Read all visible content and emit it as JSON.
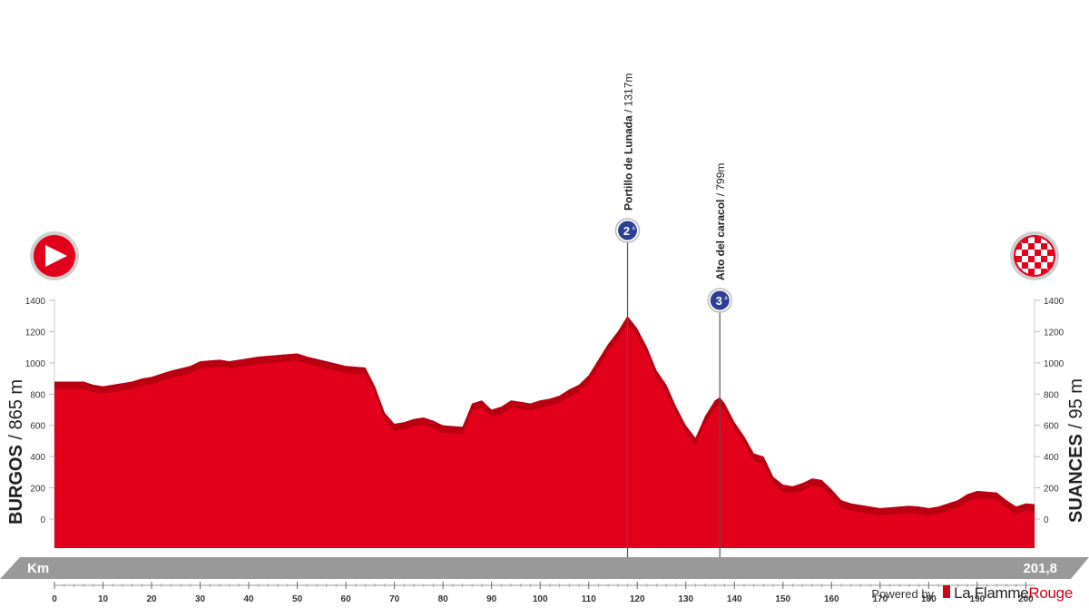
{
  "chart_data": {
    "type": "area",
    "start": {
      "name": "BURGOS",
      "elevation": "865 m",
      "separator": " / "
    },
    "finish": {
      "name": "SUANCES",
      "elevation": "95 m",
      "separator": " / "
    },
    "x_axis_label": "Km",
    "total_distance": "201,8",
    "xlim": [
      0,
      201.8
    ],
    "ylim": [
      0,
      1400
    ],
    "x_ticks": [
      0,
      10,
      20,
      30,
      40,
      50,
      60,
      70,
      80,
      90,
      100,
      110,
      120,
      130,
      140,
      150,
      160,
      170,
      180,
      190,
      200
    ],
    "y_ticks": [
      0,
      200,
      400,
      600,
      800,
      1000,
      1200,
      1400
    ],
    "profile": {
      "x": [
        0,
        6,
        8,
        10,
        14,
        16,
        18,
        20,
        22,
        24,
        28,
        30,
        34,
        36,
        40,
        42,
        46,
        50,
        52,
        56,
        60,
        64,
        66,
        68,
        70,
        72,
        74,
        76,
        78,
        80,
        84,
        86,
        88,
        90,
        92,
        94,
        96,
        98,
        100,
        102,
        104,
        106,
        108,
        110,
        112,
        114,
        116,
        118,
        120,
        122,
        124,
        126,
        128,
        130,
        132,
        134,
        136,
        137,
        138,
        140,
        142,
        144,
        146,
        148,
        150,
        152,
        154,
        156,
        158,
        160,
        162,
        164,
        166,
        168,
        170,
        172,
        174,
        176,
        178,
        180,
        182,
        184,
        186,
        188,
        190,
        192,
        194,
        196,
        198,
        200,
        201.8
      ],
      "y": [
        880,
        880,
        860,
        850,
        870,
        880,
        900,
        910,
        930,
        950,
        980,
        1010,
        1020,
        1010,
        1030,
        1040,
        1050,
        1060,
        1040,
        1010,
        980,
        970,
        850,
        680,
        610,
        620,
        640,
        650,
        630,
        600,
        590,
        740,
        760,
        700,
        720,
        760,
        750,
        740,
        760,
        770,
        790,
        830,
        860,
        920,
        1020,
        1120,
        1200,
        1300,
        1220,
        1100,
        950,
        860,
        720,
        600,
        520,
        660,
        760,
        780,
        740,
        620,
        530,
        420,
        400,
        270,
        220,
        210,
        230,
        260,
        250,
        190,
        120,
        100,
        90,
        80,
        70,
        75,
        80,
        85,
        80,
        70,
        80,
        100,
        120,
        160,
        180,
        175,
        170,
        120,
        80,
        100,
        95
      ]
    },
    "climbs": [
      {
        "km": 118,
        "km_label": "118",
        "elevation": 1317,
        "name": "Portillo de Lunada",
        "height": "1317m",
        "category": "2",
        "category_suffix": "a"
      },
      {
        "km": 137,
        "km_label": "137",
        "elevation": 799,
        "name": "Alto del caracol",
        "height": "799m",
        "category": "3",
        "category_suffix": "a"
      }
    ],
    "colors": {
      "fill": "#e3001b",
      "shade": "#b5000f",
      "axis_band": "#999999",
      "climb_badge": "#2e3f95",
      "icon_ring": "#c9c9c9"
    }
  },
  "credit": {
    "powered_by": "Powered by",
    "brand_a": "La Flamme",
    "brand_b": "Rouge"
  }
}
